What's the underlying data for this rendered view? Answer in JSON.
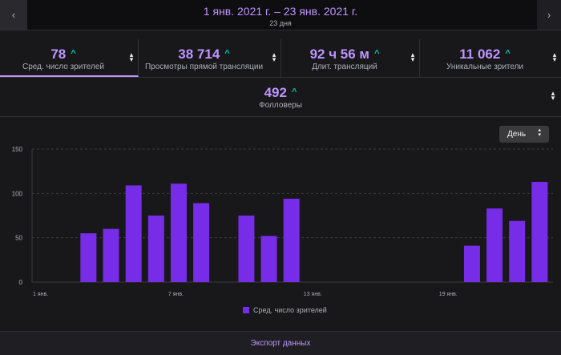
{
  "header": {
    "date_range": "1 янв. 2021 г. – 23 янв. 2021 г.",
    "days": "23 дня",
    "prev_icon": "chevron-left-icon",
    "next_icon": "chevron-right-icon"
  },
  "stats": [
    {
      "value": "78",
      "label": "Сред. число зрителей",
      "active": true
    },
    {
      "value": "38 714",
      "label": "Просмотры прямой трансляции",
      "active": false
    },
    {
      "value": "92 ч 56 м",
      "label": "Длит. трансляций",
      "active": false
    },
    {
      "value": "11 062",
      "label": "Уникальные зрители",
      "active": false
    }
  ],
  "stats2": {
    "value": "492",
    "label": "Фолловеры"
  },
  "arrow_glyph": "^",
  "dropdown": {
    "selected": "День"
  },
  "colors": {
    "accent": "#bf94ff",
    "bar": "#772ce8",
    "trend": "#00c8af"
  },
  "chart_data": {
    "type": "bar",
    "categories": [
      "1 янв.",
      "2 янв.",
      "3 янв.",
      "4 янв.",
      "5 янв.",
      "6 янв.",
      "7 янв.",
      "8 янв.",
      "9 янв.",
      "10 янв.",
      "11 янв.",
      "12 янв.",
      "13 янв.",
      "14 янв.",
      "15 янв.",
      "16 янв.",
      "17 янв.",
      "18 янв.",
      "19 янв.",
      "20 янв.",
      "21 янв.",
      "22 янв.",
      "23 янв."
    ],
    "values": [
      0,
      0,
      55,
      60,
      109,
      75,
      111,
      89,
      0,
      75,
      52,
      94,
      0,
      0,
      0,
      0,
      0,
      0,
      0,
      41,
      83,
      69,
      113
    ],
    "xticks": [
      {
        "index": 0,
        "label": "1 янв."
      },
      {
        "index": 6,
        "label": "7 янв."
      },
      {
        "index": 12,
        "label": "13 янв."
      },
      {
        "index": 18,
        "label": "19 янв."
      }
    ],
    "yticks": [
      0,
      50,
      100,
      150
    ],
    "ylim": [
      0,
      150
    ],
    "legend": "Сред. число зрителей",
    "grid": true
  },
  "footer": {
    "export_label": "Экспорт данных"
  }
}
